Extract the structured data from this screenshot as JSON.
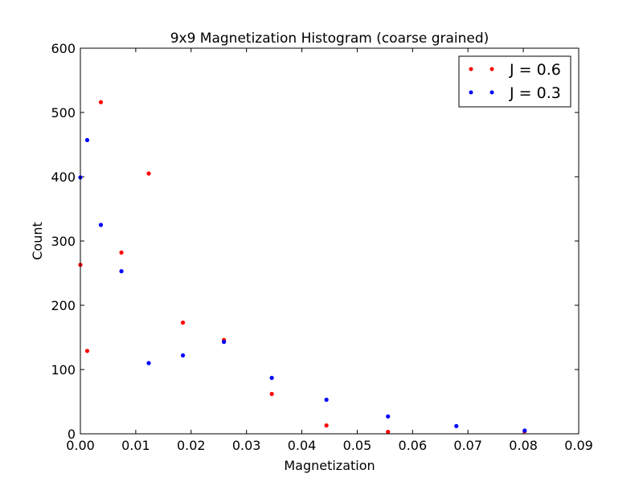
{
  "chart_data": {
    "type": "scatter",
    "title": "9x9 Magnetization Histogram (coarse grained)",
    "xlabel": "Magnetization",
    "ylabel": "Count",
    "xlim": [
      0,
      0.09
    ],
    "ylim": [
      0,
      600
    ],
    "xticks": [
      "0.00",
      "0.01",
      "0.02",
      "0.03",
      "0.04",
      "0.05",
      "0.06",
      "0.07",
      "0.08",
      "0.09"
    ],
    "yticks": [
      "0",
      "100",
      "200",
      "300",
      "400",
      "500",
      "600"
    ],
    "grid": false,
    "legend_position": "top-right",
    "series": [
      {
        "name": "J = 0.6",
        "color": "#ff0000",
        "x": [
          0.0,
          0.00123,
          0.0037,
          0.00741,
          0.01235,
          0.01852,
          0.02593,
          0.03457,
          0.04444,
          0.05556,
          0.08025
        ],
        "y": [
          263,
          129,
          516,
          282,
          405,
          173,
          146,
          62,
          13,
          3,
          4
        ]
      },
      {
        "name": "J = 0.3",
        "color": "#0000ff",
        "x": [
          0.0,
          0.00123,
          0.0037,
          0.00741,
          0.01235,
          0.01852,
          0.02593,
          0.03457,
          0.04444,
          0.05556,
          0.0679,
          0.08025
        ],
        "y": [
          399,
          457,
          325,
          253,
          110,
          122,
          143,
          87,
          53,
          27,
          12,
          5
        ]
      }
    ]
  }
}
